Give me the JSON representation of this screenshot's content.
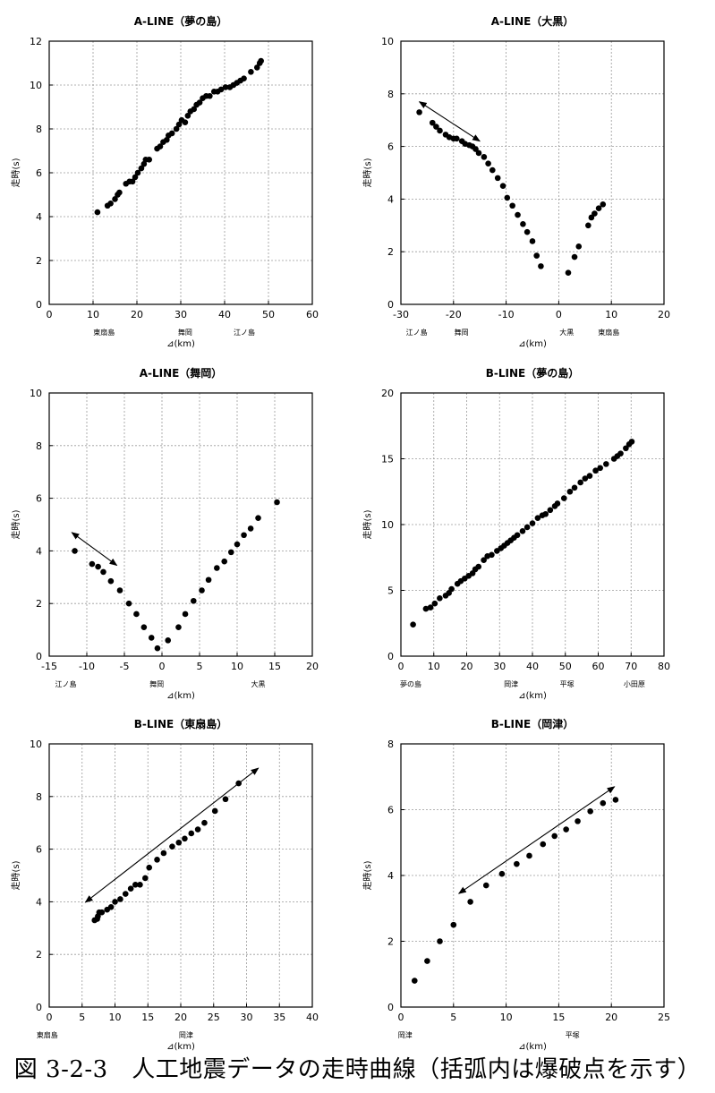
{
  "caption": "図 3-2-3　人工地震データの走時曲線（括弧内は爆破点を示す）",
  "chart_data": [
    {
      "type": "scatter",
      "title": "A-LINE（夢の島）",
      "xlabel": "⊿(km)",
      "ylabel": "走時(s)",
      "xlim": [
        0,
        60
      ],
      "ylim": [
        0,
        12
      ],
      "xticks": [
        0,
        10,
        20,
        30,
        40,
        50,
        60
      ],
      "yticks": [
        0,
        2,
        4,
        6,
        8,
        10,
        12
      ],
      "grid": true,
      "station_labels": [
        {
          "x": 12.5,
          "text": "東扇島"
        },
        {
          "x": 31,
          "text": "舞岡"
        },
        {
          "x": 44.5,
          "text": "江ノ島"
        }
      ],
      "arrow": null,
      "points": [
        [
          11,
          4.2
        ],
        [
          13.3,
          4.5
        ],
        [
          14,
          4.6
        ],
        [
          15,
          4.8
        ],
        [
          15.6,
          5.0
        ],
        [
          16,
          5.1
        ],
        [
          17.5,
          5.5
        ],
        [
          18.3,
          5.6
        ],
        [
          19,
          5.6
        ],
        [
          19.6,
          5.8
        ],
        [
          20.2,
          6.0
        ],
        [
          21,
          6.2
        ],
        [
          21.6,
          6.4
        ],
        [
          22,
          6.6
        ],
        [
          22.8,
          6.6
        ],
        [
          24.6,
          7.1
        ],
        [
          25.3,
          7.2
        ],
        [
          26,
          7.4
        ],
        [
          26.8,
          7.5
        ],
        [
          27.2,
          7.7
        ],
        [
          28,
          7.8
        ],
        [
          29,
          8.0
        ],
        [
          29.6,
          8.2
        ],
        [
          30.2,
          8.4
        ],
        [
          31,
          8.3
        ],
        [
          31.6,
          8.6
        ],
        [
          32.2,
          8.8
        ],
        [
          33,
          8.9
        ],
        [
          33.6,
          9.1
        ],
        [
          34.3,
          9.2
        ],
        [
          35,
          9.4
        ],
        [
          35.8,
          9.5
        ],
        [
          36.6,
          9.5
        ],
        [
          37.6,
          9.7
        ],
        [
          38.4,
          9.7
        ],
        [
          39.2,
          9.8
        ],
        [
          40.2,
          9.9
        ],
        [
          41.2,
          9.9
        ],
        [
          42,
          10.0
        ],
        [
          42.8,
          10.1
        ],
        [
          43.6,
          10.2
        ],
        [
          44.4,
          10.3
        ],
        [
          46,
          10.6
        ],
        [
          47.4,
          10.8
        ],
        [
          48,
          11.0
        ],
        [
          48.3,
          11.1
        ]
      ]
    },
    {
      "type": "scatter",
      "title": "A-LINE（大黒）",
      "xlabel": "⊿(km)",
      "ylabel": "走時(s)",
      "xlim": [
        -30,
        20
      ],
      "ylim": [
        0,
        10
      ],
      "xticks": [
        -30,
        -20,
        -10,
        0,
        10,
        20
      ],
      "yticks": [
        0,
        2,
        4,
        6,
        8,
        10
      ],
      "grid": true,
      "station_labels": [
        {
          "x": -27,
          "text": "江ノ島"
        },
        {
          "x": -18.5,
          "text": "舞岡"
        },
        {
          "x": 1.5,
          "text": "大黒"
        },
        {
          "x": 9.5,
          "text": "東扇島"
        }
      ],
      "arrow": [
        [
          -26.5,
          7.7
        ],
        [
          -15,
          6.2
        ]
      ],
      "points": [
        [
          -26.5,
          7.3
        ],
        [
          -24,
          6.9
        ],
        [
          -23.3,
          6.75
        ],
        [
          -22.6,
          6.6
        ],
        [
          -21.5,
          6.45
        ],
        [
          -20.8,
          6.35
        ],
        [
          -20,
          6.3
        ],
        [
          -19.4,
          6.3
        ],
        [
          -18.4,
          6.2
        ],
        [
          -17.8,
          6.1
        ],
        [
          -17,
          6.05
        ],
        [
          -16.4,
          6.0
        ],
        [
          -15.8,
          5.9
        ],
        [
          -15.2,
          5.75
        ],
        [
          -14.2,
          5.6
        ],
        [
          -13.4,
          5.35
        ],
        [
          -12.6,
          5.1
        ],
        [
          -11.6,
          4.8
        ],
        [
          -10.6,
          4.5
        ],
        [
          -9.8,
          4.05
        ],
        [
          -8.8,
          3.75
        ],
        [
          -7.8,
          3.4
        ],
        [
          -6.8,
          3.05
        ],
        [
          -6,
          2.75
        ],
        [
          -5,
          2.4
        ],
        [
          -4.2,
          1.85
        ],
        [
          -3.4,
          1.45
        ],
        [
          1.8,
          1.2
        ],
        [
          3,
          1.8
        ],
        [
          3.8,
          2.2
        ],
        [
          5.6,
          3.0
        ],
        [
          6.2,
          3.3
        ],
        [
          6.8,
          3.45
        ],
        [
          7.6,
          3.65
        ],
        [
          8.4,
          3.8
        ]
      ]
    },
    {
      "type": "scatter",
      "title": "A-LINE（舞岡）",
      "xlabel": "⊿(km)",
      "ylabel": "走時(s)",
      "xlim": [
        -15,
        20
      ],
      "ylim": [
        0,
        10
      ],
      "xticks": [
        -15,
        -10,
        -5,
        0,
        5,
        10,
        15,
        20
      ],
      "yticks": [
        0,
        2,
        4,
        6,
        8,
        10
      ],
      "grid": true,
      "station_labels": [
        {
          "x": -12.8,
          "text": "江ノ島"
        },
        {
          "x": -0.7,
          "text": "舞岡"
        },
        {
          "x": 12.8,
          "text": "大黒"
        }
      ],
      "arrow": [
        [
          -12,
          4.7
        ],
        [
          -6,
          3.45
        ]
      ],
      "points": [
        [
          -11.6,
          4.0
        ],
        [
          -9.3,
          3.5
        ],
        [
          -8.5,
          3.4
        ],
        [
          -7.8,
          3.2
        ],
        [
          -6.8,
          2.85
        ],
        [
          -5.6,
          2.5
        ],
        [
          -4.4,
          2.0
        ],
        [
          -3.4,
          1.6
        ],
        [
          -2.4,
          1.1
        ],
        [
          -1.4,
          0.7
        ],
        [
          -0.6,
          0.3
        ],
        [
          0.8,
          0.6
        ],
        [
          2.2,
          1.1
        ],
        [
          3.1,
          1.6
        ],
        [
          4.2,
          2.1
        ],
        [
          5.3,
          2.5
        ],
        [
          6.2,
          2.9
        ],
        [
          7.3,
          3.35
        ],
        [
          8.3,
          3.6
        ],
        [
          9.2,
          3.95
        ],
        [
          10,
          4.25
        ],
        [
          10.9,
          4.6
        ],
        [
          11.8,
          4.85
        ],
        [
          12.8,
          5.25
        ],
        [
          15.3,
          5.85
        ]
      ]
    },
    {
      "type": "scatter",
      "title": "B-LINE（夢の島）",
      "xlabel": "⊿(km)",
      "ylabel": "走時(s)",
      "xlim": [
        0,
        80
      ],
      "ylim": [
        0,
        20
      ],
      "xticks": [
        0,
        10,
        20,
        30,
        40,
        50,
        60,
        70,
        80
      ],
      "yticks": [
        0,
        5,
        10,
        15,
        20
      ],
      "grid": true,
      "station_labels": [
        {
          "x": 3,
          "text": "夢の島"
        },
        {
          "x": 33.5,
          "text": "岡津"
        },
        {
          "x": 50.5,
          "text": "平塚"
        },
        {
          "x": 71,
          "text": "小田原"
        }
      ],
      "arrow": null,
      "points": [
        [
          3.7,
          2.4
        ],
        [
          7.6,
          3.6
        ],
        [
          9,
          3.7
        ],
        [
          10.3,
          4.0
        ],
        [
          11.8,
          4.4
        ],
        [
          13.6,
          4.6
        ],
        [
          14.6,
          4.8
        ],
        [
          15.4,
          5.1
        ],
        [
          17.2,
          5.5
        ],
        [
          18.2,
          5.7
        ],
        [
          19.4,
          5.9
        ],
        [
          20.6,
          6.1
        ],
        [
          21.8,
          6.3
        ],
        [
          22.6,
          6.6
        ],
        [
          23.6,
          6.8
        ],
        [
          25.2,
          7.3
        ],
        [
          26.3,
          7.6
        ],
        [
          27.6,
          7.7
        ],
        [
          29.2,
          8.0
        ],
        [
          30.4,
          8.2
        ],
        [
          31.4,
          8.4
        ],
        [
          32.4,
          8.6
        ],
        [
          33.4,
          8.8
        ],
        [
          34.4,
          9.0
        ],
        [
          35.4,
          9.2
        ],
        [
          37,
          9.5
        ],
        [
          38.4,
          9.8
        ],
        [
          40,
          10.1
        ],
        [
          41.6,
          10.5
        ],
        [
          43,
          10.7
        ],
        [
          44,
          10.8
        ],
        [
          45.4,
          11.1
        ],
        [
          46.8,
          11.4
        ],
        [
          47.6,
          11.6
        ],
        [
          49.6,
          12.0
        ],
        [
          51.4,
          12.5
        ],
        [
          52.8,
          12.8
        ],
        [
          54.6,
          13.2
        ],
        [
          56,
          13.5
        ],
        [
          57.4,
          13.7
        ],
        [
          59.2,
          14.1
        ],
        [
          60.6,
          14.3
        ],
        [
          62.4,
          14.6
        ],
        [
          64.8,
          15.0
        ],
        [
          65.8,
          15.2
        ],
        [
          66.8,
          15.4
        ],
        [
          68.4,
          15.8
        ],
        [
          69.4,
          16.1
        ],
        [
          70.2,
          16.3
        ]
      ]
    },
    {
      "type": "scatter",
      "title": "B-LINE（東扇島）",
      "xlabel": "⊿(km)",
      "ylabel": "走時(s)",
      "xlim": [
        0,
        40
      ],
      "ylim": [
        0,
        10
      ],
      "xticks": [
        0,
        5,
        10,
        15,
        20,
        25,
        30,
        35,
        40
      ],
      "yticks": [
        0,
        2,
        4,
        6,
        8,
        10
      ],
      "grid": true,
      "station_labels": [
        {
          "x": -0.3,
          "text": "東扇島"
        },
        {
          "x": 20.8,
          "text": "岡津"
        }
      ],
      "arrow": [
        [
          5.5,
          3.98
        ],
        [
          31.8,
          9.08
        ]
      ],
      "points": [
        [
          6.9,
          3.3
        ],
        [
          7.3,
          3.35
        ],
        [
          7.4,
          3.45
        ],
        [
          7.6,
          3.6
        ],
        [
          8,
          3.6
        ],
        [
          8.8,
          3.7
        ],
        [
          9.4,
          3.8
        ],
        [
          10,
          4.0
        ],
        [
          10.8,
          4.1
        ],
        [
          11.6,
          4.3
        ],
        [
          12.4,
          4.5
        ],
        [
          13.1,
          4.65
        ],
        [
          13.8,
          4.65
        ],
        [
          14.6,
          4.9
        ],
        [
          15.2,
          5.3
        ],
        [
          16.4,
          5.6
        ],
        [
          17.4,
          5.85
        ],
        [
          18.7,
          6.1
        ],
        [
          19.7,
          6.25
        ],
        [
          20.6,
          6.4
        ],
        [
          21.6,
          6.6
        ],
        [
          22.6,
          6.75
        ],
        [
          23.6,
          7.0
        ],
        [
          25.2,
          7.45
        ],
        [
          26.8,
          7.9
        ],
        [
          28.8,
          8.5
        ]
      ]
    },
    {
      "type": "scatter",
      "title": "B-LINE（岡津）",
      "xlabel": "⊿(km)",
      "ylabel": "走時(s)",
      "xlim": [
        0,
        25
      ],
      "ylim": [
        0,
        8
      ],
      "xticks": [
        0,
        5,
        10,
        15,
        20,
        25
      ],
      "yticks": [
        0,
        2,
        4,
        6,
        8
      ],
      "grid": true,
      "station_labels": [
        {
          "x": 0.4,
          "text": "岡津"
        },
        {
          "x": 16.3,
          "text": "平塚"
        }
      ],
      "arrow": [
        [
          5.5,
          3.45
        ],
        [
          20.3,
          6.7
        ]
      ],
      "points": [
        [
          1.3,
          0.8
        ],
        [
          2.5,
          1.4
        ],
        [
          3.7,
          2.0
        ],
        [
          5,
          2.5
        ],
        [
          6.6,
          3.2
        ],
        [
          8.1,
          3.7
        ],
        [
          9.6,
          4.05
        ],
        [
          11,
          4.35
        ],
        [
          12.2,
          4.6
        ],
        [
          13.5,
          4.95
        ],
        [
          14.6,
          5.2
        ],
        [
          15.7,
          5.4
        ],
        [
          16.8,
          5.65
        ],
        [
          18,
          5.95
        ],
        [
          19.2,
          6.2
        ],
        [
          20.4,
          6.3
        ]
      ]
    }
  ]
}
